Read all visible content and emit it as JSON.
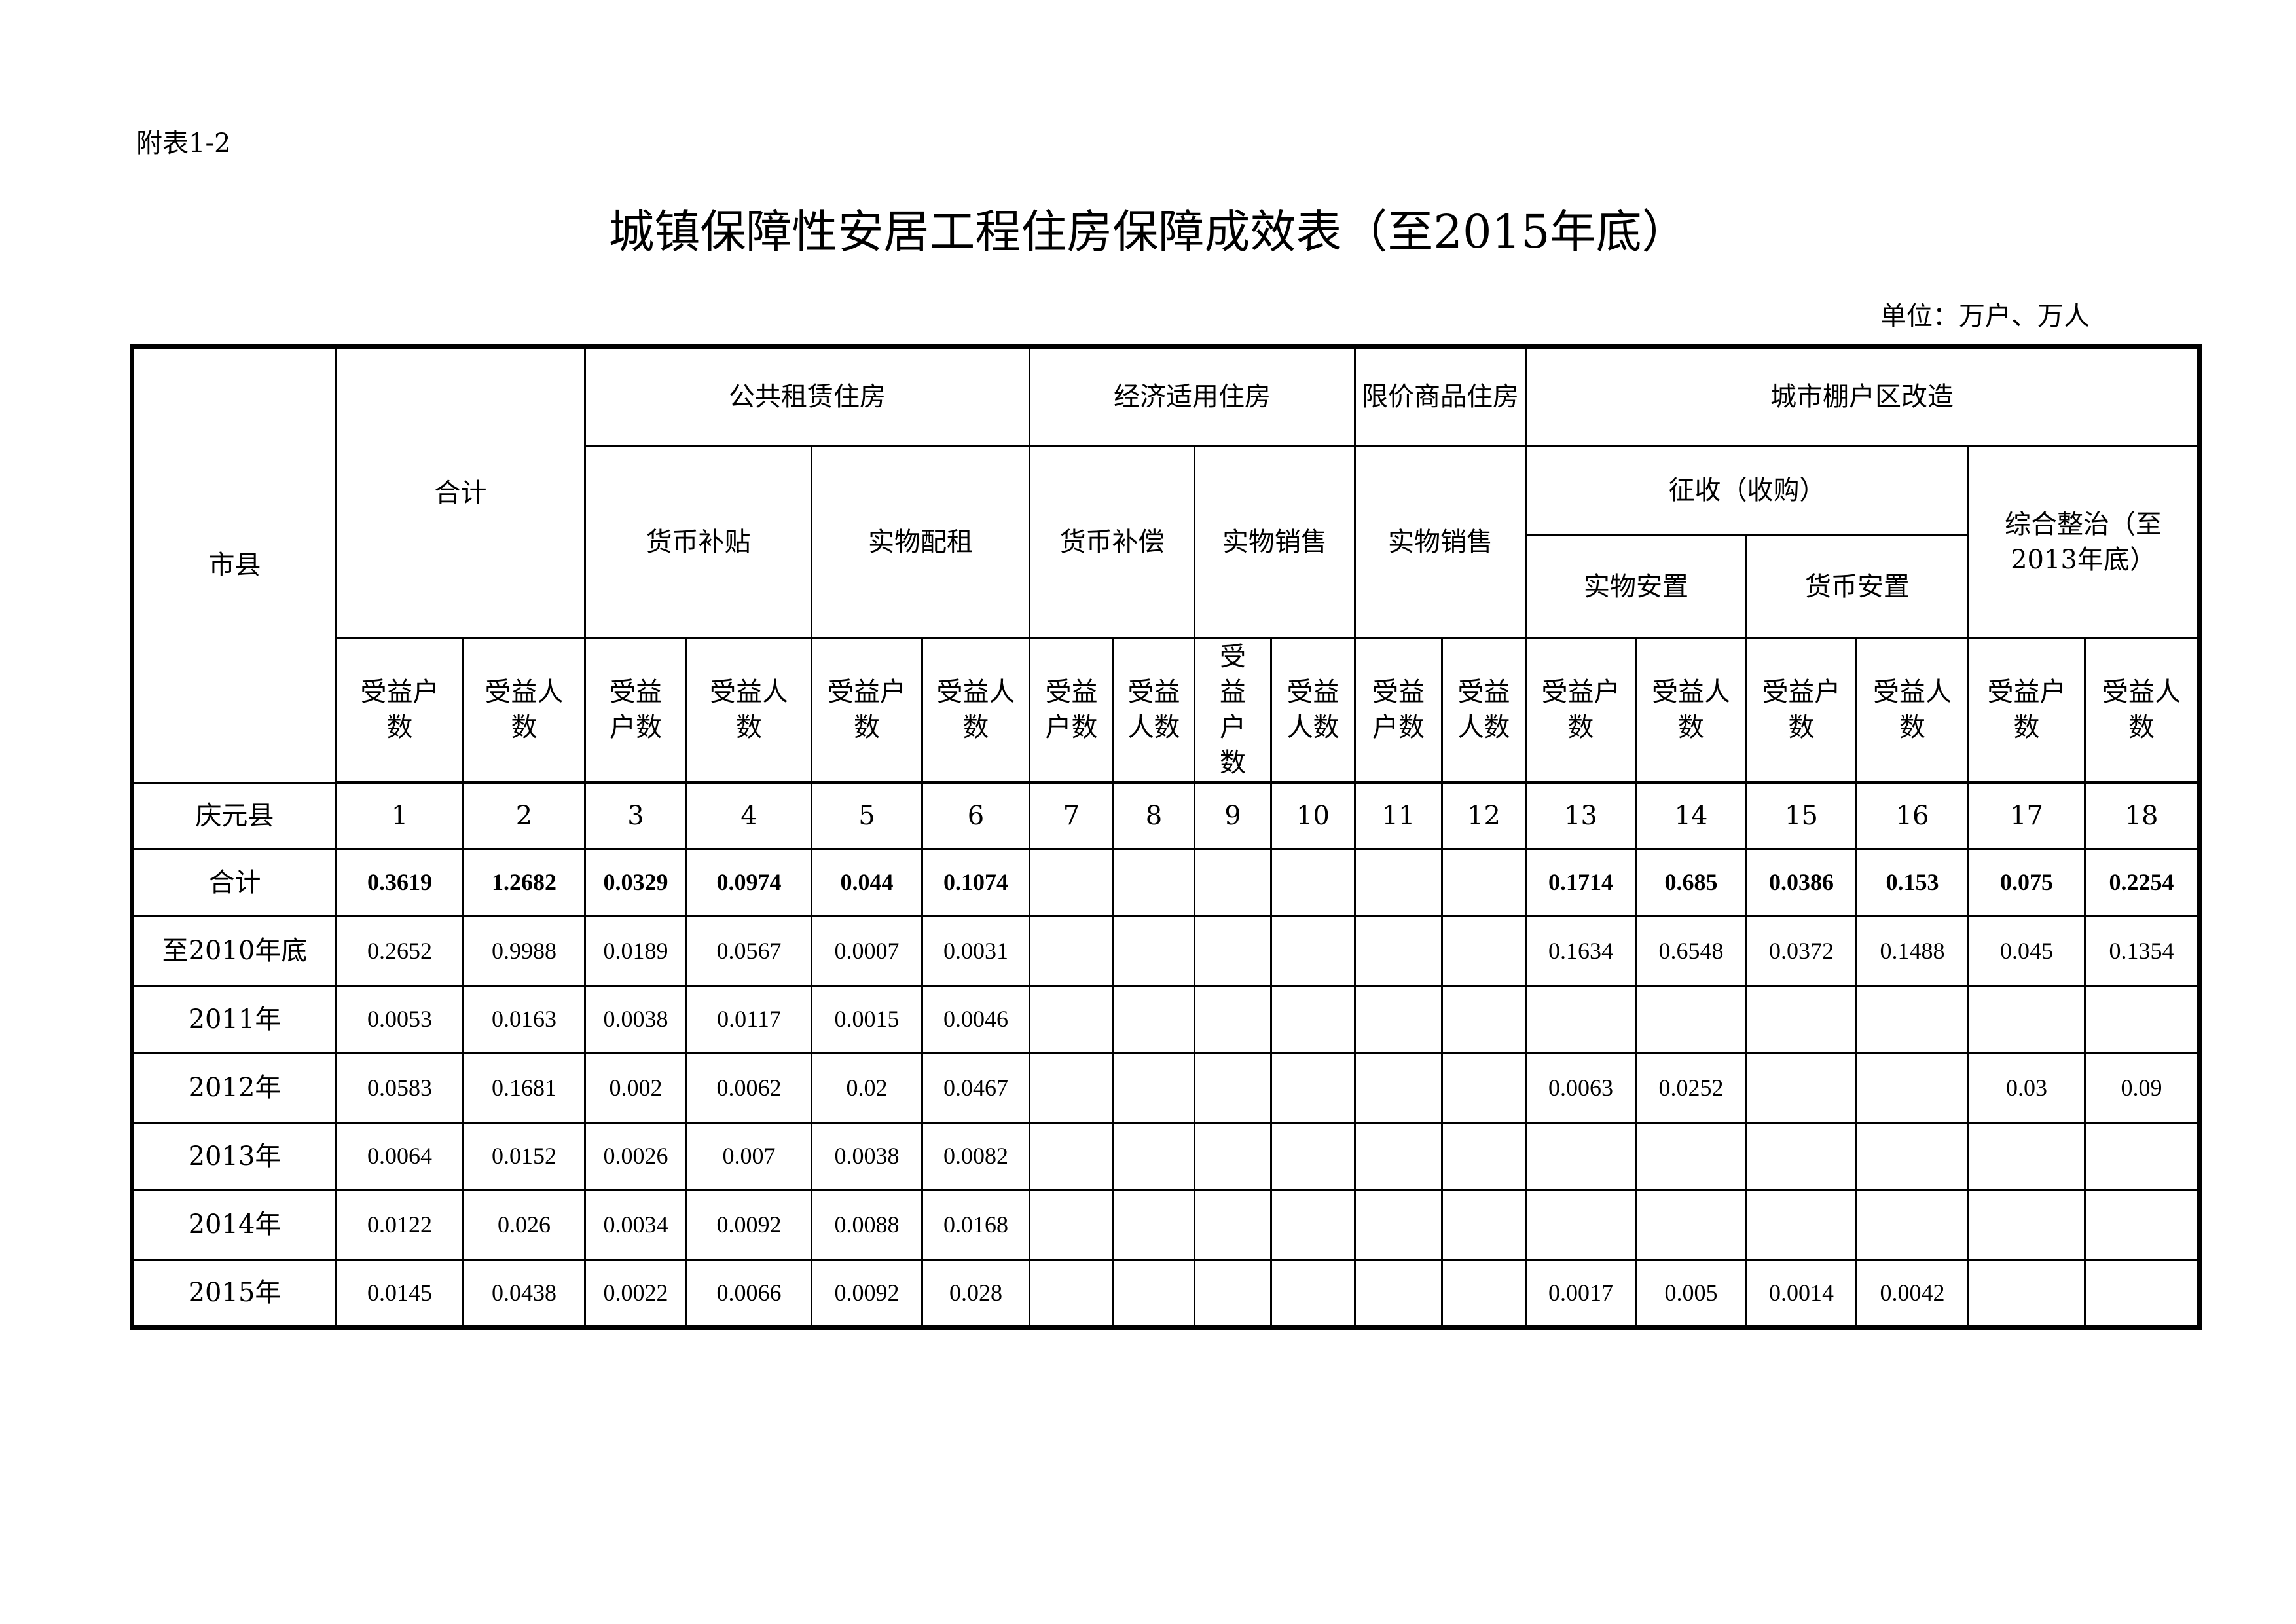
{
  "annex_label": "附表1-2",
  "title": "城镇保障性安居工程住房保障成效表（至2015年底）",
  "unit": "单位：万户、万人",
  "header": {
    "region": "市县",
    "total": "合计",
    "public_rental": "公共租赁住房",
    "affordable": "经济适用住房",
    "price_limited": "限价商品住房",
    "shantytown": "城市棚户区改造",
    "cash_subsidy": "货币补贴",
    "in_kind_rental": "实物配租",
    "cash_compensation": "货币补偿",
    "in_kind_sales_1": "实物销售",
    "in_kind_sales_2": "实物销售",
    "expropriation": "征收（收购）",
    "comprehensive": "综合整治（至2013年底）",
    "in_kind_resettle": "实物安置",
    "cash_resettle": "货币安置",
    "households": "受益户数",
    "persons": "受益人数"
  },
  "index_row": {
    "label": "庆元县",
    "values": [
      "1",
      "2",
      "3",
      "4",
      "5",
      "6",
      "7",
      "8",
      "9",
      "10",
      "11",
      "12",
      "13",
      "14",
      "15",
      "16",
      "17",
      "18"
    ]
  },
  "rows": [
    {
      "label": "合计",
      "values": [
        "0.3619",
        "1.2682",
        "0.0329",
        "0.0974",
        "0.044",
        "0.1074",
        "",
        "",
        "",
        "",
        "",
        "",
        "0.1714",
        "0.685",
        "0.0386",
        "0.153",
        "0.075",
        "0.2254"
      ]
    },
    {
      "label": "至2010年底",
      "values": [
        "0.2652",
        "0.9988",
        "0.0189",
        "0.0567",
        "0.0007",
        "0.0031",
        "",
        "",
        "",
        "",
        "",
        "",
        "0.1634",
        "0.6548",
        "0.0372",
        "0.1488",
        "0.045",
        "0.1354"
      ]
    },
    {
      "label": "2011年",
      "values": [
        "0.0053",
        "0.0163",
        "0.0038",
        "0.0117",
        "0.0015",
        "0.0046",
        "",
        "",
        "",
        "",
        "",
        "",
        "",
        "",
        "",
        "",
        "",
        ""
      ]
    },
    {
      "label": "2012年",
      "values": [
        "0.0583",
        "0.1681",
        "0.002",
        "0.0062",
        "0.02",
        "0.0467",
        "",
        "",
        "",
        "",
        "",
        "",
        "0.0063",
        "0.0252",
        "",
        "",
        "0.03",
        "0.09"
      ]
    },
    {
      "label": "2013年",
      "values": [
        "0.0064",
        "0.0152",
        "0.0026",
        "0.007",
        "0.0038",
        "0.0082",
        "",
        "",
        "",
        "",
        "",
        "",
        "",
        "",
        "",
        "",
        "",
        ""
      ]
    },
    {
      "label": "2014年",
      "values": [
        "0.0122",
        "0.026",
        "0.0034",
        "0.0092",
        "0.0088",
        "0.0168",
        "",
        "",
        "",
        "",
        "",
        "",
        "",
        "",
        "",
        "",
        "",
        ""
      ]
    },
    {
      "label": "2015年",
      "values": [
        "0.0145",
        "0.0438",
        "0.0022",
        "0.0066",
        "0.0092",
        "0.028",
        "",
        "",
        "",
        "",
        "",
        "",
        "0.0017",
        "0.005",
        "0.0014",
        "0.0042",
        "",
        ""
      ]
    }
  ]
}
